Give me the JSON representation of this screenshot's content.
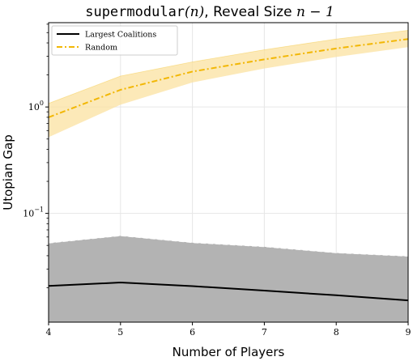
{
  "chart_data": {
    "type": "line",
    "title_parts": {
      "func": "supermodular",
      "arg": "(n)",
      "rest": ", Reveal Size ",
      "expr": "n − 1"
    },
    "xlabel": "Number of Players",
    "ylabel": "Utopian Gap",
    "x": [
      4,
      5,
      6,
      7,
      8,
      9
    ],
    "xlim": [
      4,
      9
    ],
    "xticks": [
      "4",
      "5",
      "6",
      "7",
      "8",
      "9"
    ],
    "yscale": "log",
    "ylim": [
      0.0095,
      6.2
    ],
    "yticks": [
      {
        "value": 1,
        "base": "10",
        "exp": "0"
      },
      {
        "value": 0.1,
        "base": "10",
        "exp": "−1"
      }
    ],
    "grid": true,
    "legend_position": "top-left",
    "series": [
      {
        "name": "Largest Coalitions",
        "color": "#000000",
        "band_color": "#b3b3b3",
        "style": "solid",
        "values": [
          0.0208,
          0.0224,
          0.0207,
          0.0188,
          0.017,
          0.0152
        ],
        "band_upper": [
          0.0525,
          0.0615,
          0.053,
          0.0485,
          0.0425,
          0.0395
        ],
        "band_lower": [
          0.0095,
          0.0095,
          0.0095,
          0.0095,
          0.0095,
          0.0095
        ]
      },
      {
        "name": "Random",
        "color": "#f2b705",
        "band_color": "#fbe2a0",
        "style": "dashdot",
        "values": [
          0.8,
          1.45,
          2.15,
          2.8,
          3.55,
          4.35
        ],
        "band_upper": [
          1.08,
          1.95,
          2.65,
          3.45,
          4.35,
          5.25
        ],
        "band_lower": [
          0.52,
          1.05,
          1.7,
          2.3,
          2.95,
          3.65
        ]
      }
    ]
  }
}
